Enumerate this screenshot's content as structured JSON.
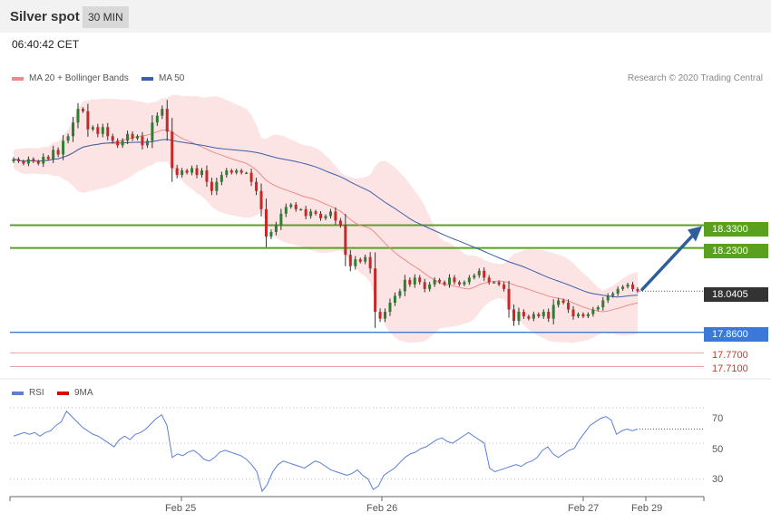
{
  "header": {
    "title": "Silver spot",
    "interval": "30 MIN"
  },
  "timestamp": "06:40:42 CET",
  "legend": {
    "ma20": "MA 20 + Bollinger Bands",
    "ma50": "MA 50",
    "credit": "Research © 2020 Trading Central",
    "rsi": "RSI",
    "rsi_ma": "9MA"
  },
  "colors": {
    "up_candle": "#2e7d32",
    "down_candle": "#c62828",
    "resistance": "#5aa01f",
    "support": "#3b78d8",
    "ma20": "#ef8a8a",
    "ma50": "#3a5ea8",
    "bollinger_fill": "#fde4e4",
    "arrow": "#2f5f9a",
    "current_badge": "#333333"
  },
  "levels": {
    "r2": "18.3300",
    "r1": "18.2300",
    "current": "18.0405",
    "s1": "17.8600",
    "s2": "17.7700",
    "s3": "17.7100"
  },
  "chart_data": [
    {
      "type": "candlestick",
      "name": "price",
      "x_ticks": [
        "Feb 25",
        "Feb 26",
        "Feb 27",
        "Feb 29"
      ],
      "y_range": [
        17.68,
        18.92
      ],
      "close": [
        18.62,
        18.61,
        18.6,
        18.62,
        18.61,
        18.6,
        18.63,
        18.62,
        18.66,
        18.64,
        18.7,
        18.72,
        18.78,
        18.84,
        18.83,
        18.75,
        18.76,
        18.73,
        18.76,
        18.72,
        18.7,
        18.68,
        18.7,
        18.73,
        18.71,
        18.72,
        18.68,
        18.7,
        18.78,
        18.81,
        18.84,
        18.74,
        18.58,
        18.55,
        18.57,
        18.56,
        18.58,
        18.55,
        18.57,
        18.52,
        18.48,
        18.52,
        18.55,
        18.57,
        18.56,
        18.57,
        18.56,
        18.56,
        18.52,
        18.48,
        18.4,
        18.28,
        18.3,
        18.33,
        18.38,
        18.41,
        18.42,
        18.4,
        18.4,
        18.37,
        18.39,
        18.38,
        18.36,
        18.37,
        18.39,
        18.35,
        18.33,
        18.2,
        18.15,
        18.18,
        18.17,
        18.19,
        18.14,
        17.95,
        17.92,
        17.95,
        17.99,
        18.02,
        18.04,
        18.09,
        18.07,
        18.1,
        18.08,
        18.05,
        18.07,
        18.09,
        18.08,
        18.07,
        18.1,
        18.08,
        18.07,
        18.08,
        18.1,
        18.11,
        18.13,
        18.1,
        18.08,
        18.08,
        18.07,
        18.05,
        17.96,
        17.91,
        17.95,
        17.93,
        17.92,
        17.94,
        17.93,
        17.95,
        17.92,
        17.98,
        18.0,
        17.99,
        17.96,
        17.93,
        17.94,
        17.93,
        17.94,
        17.96,
        17.97,
        18.0,
        18.02,
        18.03,
        18.05,
        18.06,
        18.07,
        18.05,
        18.04
      ]
    },
    {
      "type": "line",
      "name": "RSI",
      "y_range": [
        20,
        75
      ],
      "ticks": [
        "70",
        "50",
        "30"
      ],
      "values": [
        54,
        55,
        56,
        55,
        56,
        54,
        56,
        57,
        60,
        62,
        68,
        65,
        62,
        59,
        57,
        55,
        54,
        52,
        50,
        48,
        52,
        54,
        52,
        55,
        56,
        58,
        61,
        64,
        66,
        60,
        42,
        44,
        43,
        45,
        46,
        44,
        41,
        40,
        42,
        45,
        46,
        45,
        44,
        43,
        41,
        38,
        34,
        23,
        27,
        34,
        38,
        40,
        39,
        38,
        37,
        36,
        38,
        40,
        39,
        37,
        35,
        34,
        33,
        32,
        33,
        35,
        32,
        30,
        24,
        26,
        32,
        34,
        36,
        39,
        42,
        44,
        45,
        47,
        48,
        50,
        52,
        53,
        51,
        50,
        52,
        54,
        56,
        54,
        52,
        50,
        36,
        34,
        35,
        36,
        37,
        38,
        37,
        39,
        40,
        42,
        46,
        48,
        44,
        42,
        44,
        46,
        47,
        52,
        56,
        60,
        62,
        64,
        65,
        63,
        55,
        57,
        58,
        57,
        58
      ],
      "ma9": [
        58,
        57,
        57,
        56,
        56,
        55,
        55,
        56,
        58,
        60,
        62,
        61,
        60,
        58,
        56,
        55,
        53,
        52,
        51,
        50,
        51,
        52,
        53,
        54,
        56,
        58,
        60,
        62,
        64,
        58,
        48,
        46,
        45,
        45,
        45,
        44,
        42,
        41,
        42,
        44,
        45,
        44,
        44,
        43,
        41,
        38,
        35,
        30,
        30,
        33,
        36,
        38,
        38,
        38,
        37,
        36,
        37,
        38,
        38,
        37,
        35,
        34,
        33,
        33,
        33,
        34,
        32,
        30,
        28,
        28,
        30,
        33,
        35,
        38,
        40,
        42,
        44,
        46,
        47,
        49,
        51,
        52,
        51,
        51,
        52,
        53,
        54,
        53,
        52,
        48,
        42,
        39,
        37,
        37,
        37,
        37,
        38,
        39,
        40,
        42,
        44,
        46,
        45,
        44,
        44,
        45,
        47,
        50,
        53,
        57,
        60,
        62,
        63,
        62,
        58,
        57,
        57,
        57,
        57
      ]
    }
  ]
}
